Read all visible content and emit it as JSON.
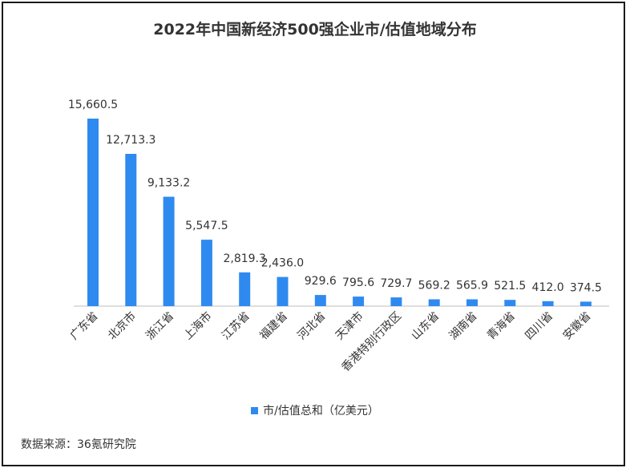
{
  "chart_data": {
    "type": "bar",
    "title": "2022年中国新经济500强企业市/估值地域分布",
    "categories": [
      "广东省",
      "北京市",
      "浙江省",
      "上海市",
      "江苏省",
      "福建省",
      "河北省",
      "天津市",
      "香港特别行政区",
      "山东省",
      "湖南省",
      "青海省",
      "四川省",
      "安徽省"
    ],
    "series": [
      {
        "name": "市/估值总和（亿美元）",
        "values": [
          15660.5,
          12713.3,
          9133.2,
          5547.5,
          2819.3,
          2436.0,
          929.6,
          795.6,
          729.7,
          569.2,
          565.9,
          521.5,
          412.0,
          374.5
        ],
        "labels": [
          "15,660.5",
          "12,713.3",
          "9,133.2",
          "5,547.5",
          "2,819.3",
          "2,436.0",
          "929.6",
          "795.6",
          "729.7",
          "569.2",
          "565.9",
          "521.5",
          "412.0",
          "374.5"
        ]
      }
    ],
    "ylim": [
      0,
      15660.5
    ],
    "grid": false,
    "legend_position": "bottom",
    "bar_color": "#2f8af0",
    "axis_color": "#bfbfbf"
  },
  "source": "数据来源：36氪研究院"
}
